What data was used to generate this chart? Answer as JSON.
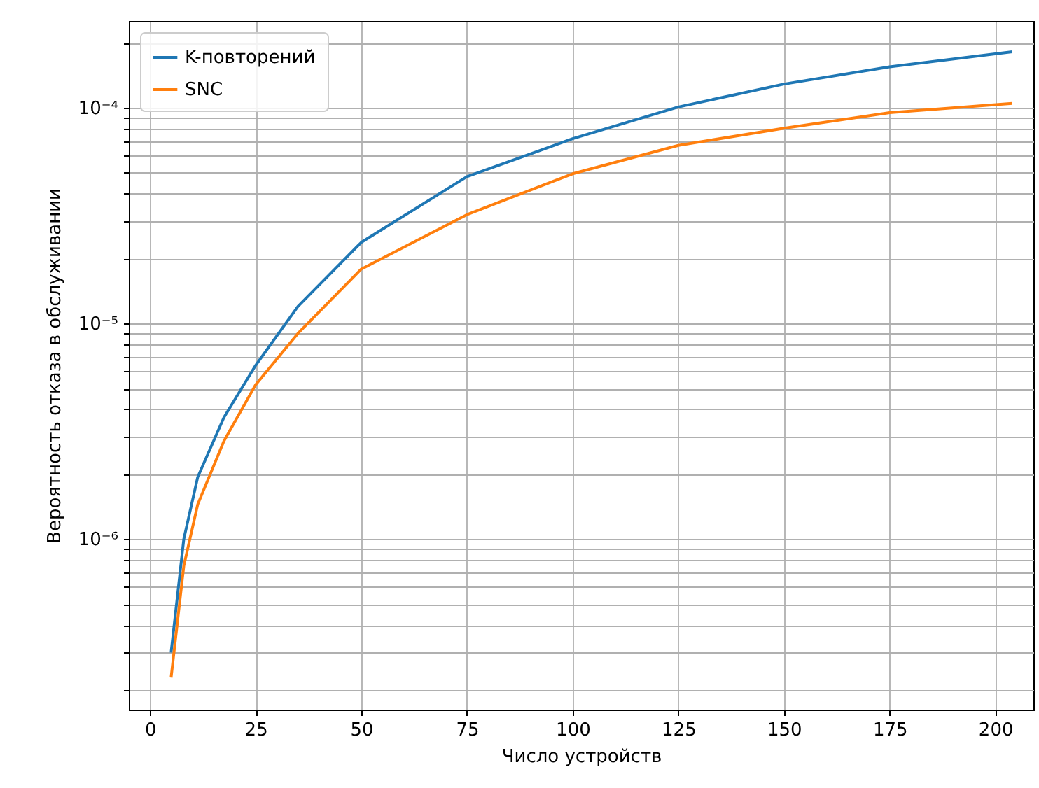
{
  "chart_data": {
    "type": "line",
    "xlabel": "Число устройств",
    "ylabel": "Вероятность отказа в обслуживании",
    "x": [
      5,
      8,
      11.3,
      17.5,
      25,
      35,
      50,
      75,
      100,
      125,
      150,
      175,
      204
    ],
    "series": [
      {
        "name": "K-повторений",
        "color": "#1f77b4",
        "values": [
          2.98e-07,
          1e-06,
          1.94e-06,
          3.67e-06,
          6.4e-06,
          1.2e-05,
          2.38e-05,
          4.8e-05,
          7.2e-05,
          0.000101,
          0.000129,
          0.000155,
          0.000182
        ]
      },
      {
        "name": "SNC",
        "color": "#ff7f0e",
        "values": [
          2.28e-07,
          7.5e-07,
          1.45e-06,
          2.85e-06,
          5.2e-06,
          9e-06,
          1.79e-05,
          3.2e-05,
          4.95e-05,
          6.7e-05,
          8.05e-05,
          9.5e-05,
          0.000105
        ]
      }
    ],
    "log": "y",
    "grid": true,
    "legend": "top left",
    "marker": "none",
    "line_style": "solid",
    "xlim": [
      -5,
      209
    ],
    "xticks": [
      0,
      25,
      50,
      75,
      100,
      125,
      150,
      175,
      200
    ],
    "ylim": [
      1.62e-07,
      0.000253
    ],
    "yticks": [
      {
        "value": 2e-07,
        "label": null
      },
      {
        "value": 3e-07,
        "label": null
      },
      {
        "value": 4e-07,
        "label": null
      },
      {
        "value": 5e-07,
        "label": null
      },
      {
        "value": 6e-07,
        "label": null
      },
      {
        "value": 7e-07,
        "label": null
      },
      {
        "value": 8e-07,
        "label": null
      },
      {
        "value": 9e-07,
        "label": null
      },
      {
        "value": 1e-06,
        "label": "10⁻⁶"
      },
      {
        "value": 2e-06,
        "label": null
      },
      {
        "value": 3e-06,
        "label": null
      },
      {
        "value": 4e-06,
        "label": null
      },
      {
        "value": 5e-06,
        "label": null
      },
      {
        "value": 6e-06,
        "label": null
      },
      {
        "value": 7e-06,
        "label": null
      },
      {
        "value": 8e-06,
        "label": null
      },
      {
        "value": 9e-06,
        "label": null
      },
      {
        "value": 1e-05,
        "label": "10⁻⁵"
      },
      {
        "value": 2e-05,
        "label": null
      },
      {
        "value": 3e-05,
        "label": null
      },
      {
        "value": 4e-05,
        "label": null
      },
      {
        "value": 5e-05,
        "label": null
      },
      {
        "value": 6e-05,
        "label": null
      },
      {
        "value": 7e-05,
        "label": null
      },
      {
        "value": 8e-05,
        "label": null
      },
      {
        "value": 9e-05,
        "label": null
      },
      {
        "value": 0.0001,
        "label": "10⁻⁴"
      },
      {
        "value": 0.0002,
        "label": null
      }
    ]
  }
}
